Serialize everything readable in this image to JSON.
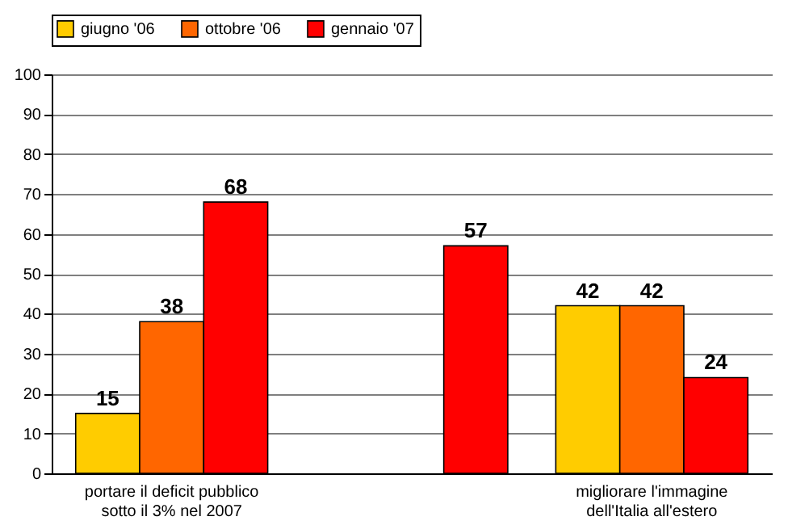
{
  "chart_data": {
    "type": "bar",
    "categories": [
      "portare il deficit pubblico sotto il 3% nel 2007",
      null,
      "migliorare l'immagine dell'Italia all'estero"
    ],
    "series": [
      {
        "name": "giugno '06",
        "color": "#ffcc00",
        "values": [
          15,
          null,
          42
        ]
      },
      {
        "name": "ottobre '06",
        "color": "#ff6600",
        "values": [
          38,
          null,
          42
        ]
      },
      {
        "name": "gennaio '07",
        "color": "#ff0000",
        "values": [
          68,
          57,
          24
        ]
      }
    ],
    "ylim": [
      0,
      100
    ],
    "yticks": [
      0,
      10,
      20,
      30,
      40,
      50,
      60,
      70,
      80,
      90,
      100
    ],
    "grid": "y",
    "legend": "top",
    "data_labels": true
  }
}
